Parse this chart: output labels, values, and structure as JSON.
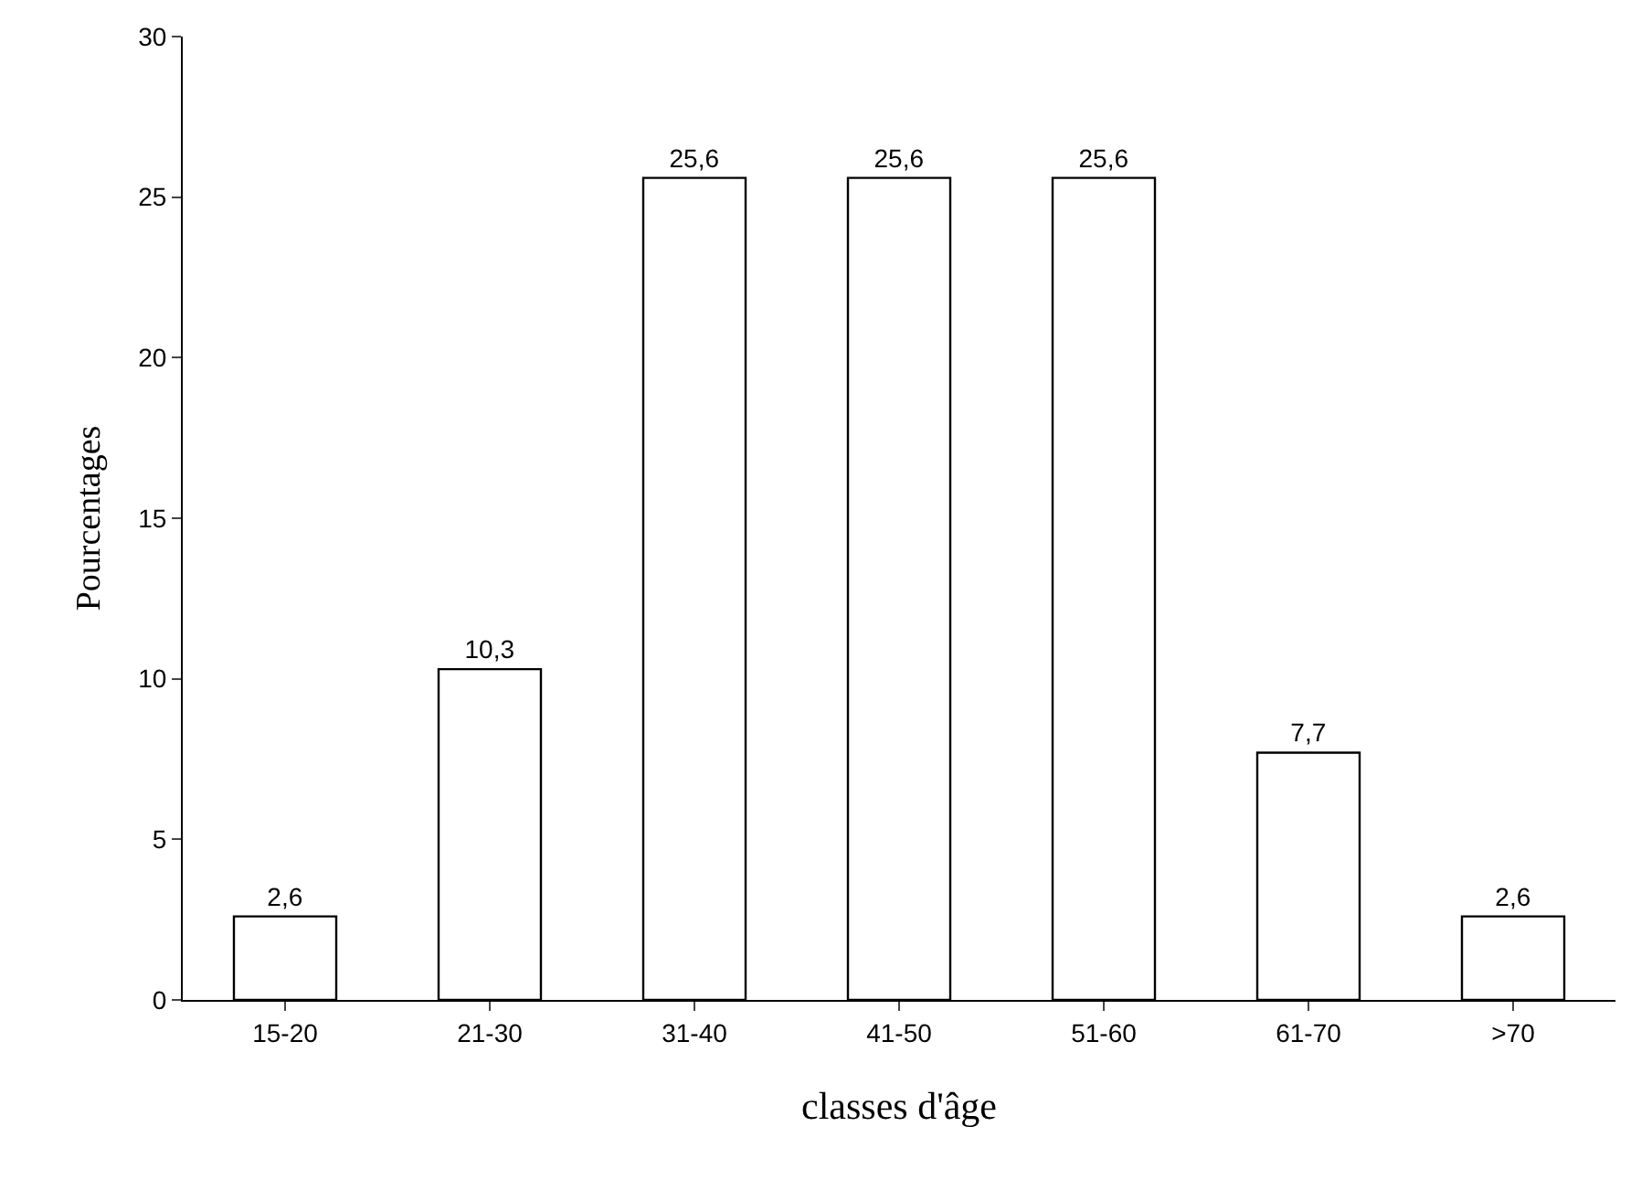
{
  "chart_data": {
    "type": "bar",
    "xlabel": "classes d'âge",
    "ylabel": "Pourcentages",
    "categories": [
      "15-20",
      "21-30",
      "31-40",
      "41-50",
      "51-60",
      "61-70",
      ">70"
    ],
    "values": [
      2.6,
      10.3,
      25.6,
      25.6,
      25.6,
      7.7,
      2.6
    ],
    "value_labels": [
      "2,6",
      "10,3",
      "25,6",
      "25,6",
      "25,6",
      "7,7",
      "2,6"
    ],
    "color": "#ffffff",
    "ylim": [
      0,
      30
    ],
    "yticks": [
      0,
      5,
      10,
      15,
      20,
      25,
      30
    ],
    "grid": false
  }
}
